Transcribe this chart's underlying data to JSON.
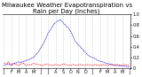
{
  "title": "Milwaukee Weather Evapotranspiration vs Rain per Day (Inches)",
  "background_color": "#ffffff",
  "line_et_color": "#0000ff",
  "line_rain_color": "#ff0000",
  "grid_color": "#aaaaaa",
  "et_values": [
    0.05,
    0.07,
    0.08,
    0.06,
    0.09,
    0.1,
    0.12,
    0.11,
    0.13,
    0.14,
    0.16,
    0.18,
    0.2,
    0.25,
    0.3,
    0.38,
    0.45,
    0.55,
    0.65,
    0.72,
    0.8,
    0.85,
    0.88,
    0.9,
    0.85,
    0.8,
    0.75,
    0.7,
    0.6,
    0.5,
    0.45,
    0.4,
    0.35,
    0.3,
    0.25,
    0.22,
    0.2,
    0.18,
    0.15,
    0.13,
    0.12,
    0.1,
    0.09,
    0.08,
    0.07,
    0.06,
    0.05,
    0.05,
    0.04,
    0.04,
    0.03,
    0.03
  ],
  "rain_values": [
    0.1,
    0.08,
    0.12,
    0.05,
    0.09,
    0.07,
    0.06,
    0.08,
    0.1,
    0.05,
    0.07,
    0.06,
    0.09,
    0.08,
    0.07,
    0.06,
    0.05,
    0.08,
    0.07,
    0.06,
    0.05,
    0.07,
    0.06,
    0.05,
    0.08,
    0.07,
    0.06,
    0.05,
    0.07,
    0.06,
    0.05,
    0.07,
    0.06,
    0.05,
    0.07,
    0.06,
    0.05,
    0.07,
    0.06,
    0.05,
    0.07,
    0.06,
    0.05,
    0.07,
    0.06,
    0.05,
    0.07,
    0.06,
    0.05,
    0.07,
    0.06,
    0.05
  ],
  "month_labels": [
    "J",
    "",
    "",
    "F",
    "",
    "",
    "M",
    "",
    "",
    "A",
    "",
    "",
    "M",
    "",
    "",
    "J",
    "",
    "",
    "J",
    "",
    "",
    "A",
    "",
    "",
    "S",
    "",
    "",
    "O",
    "",
    "",
    "N",
    "",
    "",
    "D",
    "",
    "",
    "J",
    "",
    "",
    "F",
    "",
    "",
    "M",
    "",
    "",
    "A",
    "",
    "",
    "M",
    "",
    "",
    "J",
    ""
  ],
  "month_ticks": [
    0,
    1,
    2,
    3,
    4,
    5,
    6,
    7,
    8,
    9,
    10,
    11,
    12,
    13,
    14,
    15,
    16,
    17,
    18,
    19,
    20,
    21,
    22,
    23,
    24,
    25,
    26,
    27,
    28,
    29,
    30,
    31,
    32,
    33,
    34,
    35,
    36,
    37,
    38,
    39,
    40,
    41,
    42,
    43,
    44,
    45,
    46,
    47,
    48,
    49,
    50,
    51
  ],
  "month_grid_positions": [
    0,
    3,
    6,
    9,
    12,
    15,
    18,
    21,
    24,
    27,
    30,
    33,
    36,
    39,
    42,
    45,
    48,
    51
  ],
  "ylim": [
    0,
    1.0
  ],
  "yticks": [
    0,
    0.2,
    0.4,
    0.6,
    0.8,
    1.0
  ],
  "title_fontsize": 5,
  "tick_fontsize": 3.5
}
